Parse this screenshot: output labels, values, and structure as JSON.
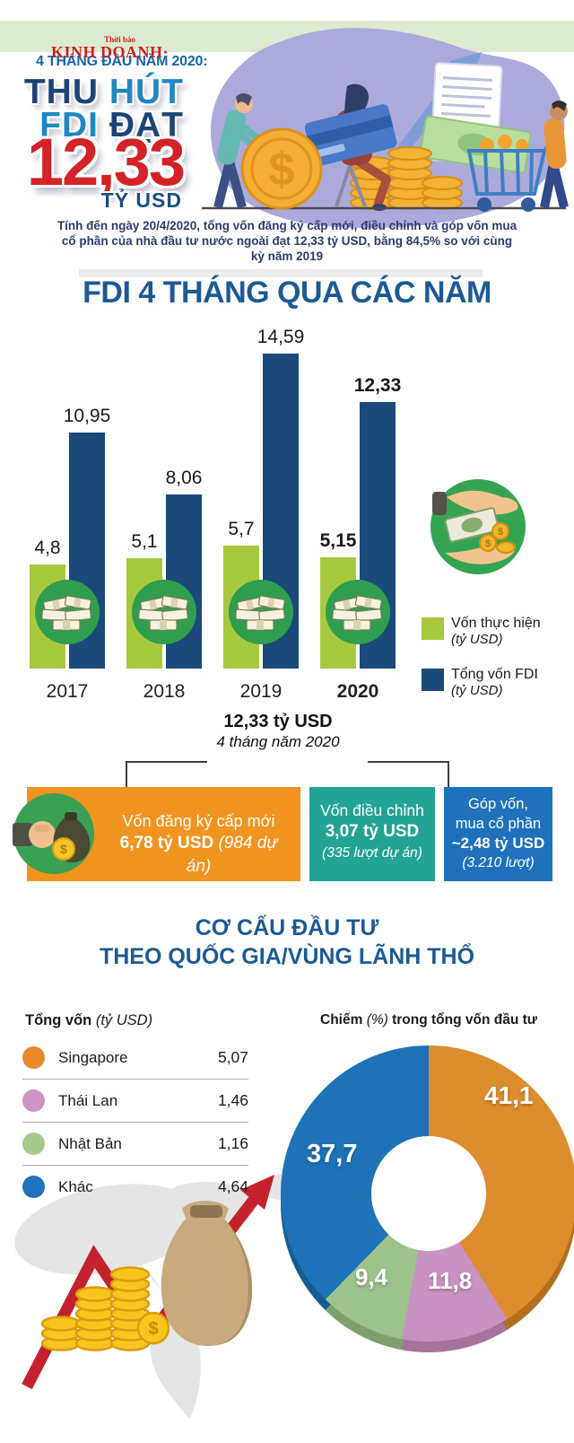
{
  "header": {
    "masthead_small": "Thời báo",
    "masthead_main": "KINH DOANH·",
    "kicker": "4 THÁNG ĐẦU NĂM 2020:",
    "title_word1": "THU",
    "title_word2": "HÚT",
    "title_word3": "FDI",
    "title_word4": "ĐẠT",
    "big_number": "12,33",
    "big_number_unit": "TỶ USD",
    "intro": "Tính đến ngày 20/4/2020, tổng vốn đăng ký cấp mới, điều chỉnh và góp vốn mua cổ phần của nhà đầu tư nước ngoài đạt 12,33 tỷ USD, bằng 84,5% so với cùng kỳ năm 2019"
  },
  "bar_section": {
    "title": "FDI 4 THÁNG QUA CÁC NĂM",
    "legend": [
      {
        "label": "Vốn thực hiện",
        "unit": "(tỷ USD)",
        "color": "#a6c93d"
      },
      {
        "label": "Tổng vốn FDI",
        "unit": "(tỷ USD)",
        "color": "#1b4a7a"
      }
    ]
  },
  "breakdown": {
    "total_label": "12,33 tỷ USD",
    "period_label": "4 tháng năm 2020",
    "boxes": [
      {
        "title": "Vốn đăng ký cấp mới",
        "value": "6,78 tỷ USD",
        "note": "(984 dự án)",
        "color": "#f0941f"
      },
      {
        "title": "Vốn điều chỉnh",
        "value": "3,07 tỷ USD",
        "note": "(335 lượt dự án)",
        "color": "#23a396"
      },
      {
        "title_line1": "Góp vốn,",
        "title_line2": "mua cổ phần",
        "value": "~2,48 tỷ USD",
        "note": "(3.210 lượt)",
        "color": "#1e71ba"
      }
    ]
  },
  "pie_section": {
    "title_line1": "CƠ CẤU ĐẦU TƯ",
    "title_line2": "THEO QUỐC GIA/VÙNG LÃNH THỔ",
    "left_header": {
      "bold": "Tổng vốn",
      "italic": "(tỷ USD)"
    },
    "right_header": {
      "bold1": "Chiếm",
      "italic": "(%)",
      "bold2": "trong tổng vốn đầu tư"
    },
    "rows": [
      {
        "name": "Singapore",
        "value": "5,07",
        "color": "#e8892b"
      },
      {
        "name": "Thái Lan",
        "value": "1,46",
        "color": "#cf93c4"
      },
      {
        "name": "Nhật Bản",
        "value": "1,16",
        "color": "#a5cb8f"
      },
      {
        "name": "Khác",
        "value": "4,64",
        "color": "#1e73ba"
      }
    ]
  },
  "chart_data": [
    {
      "type": "bar",
      "title": "FDI 4 THÁNG QUA CÁC NĂM",
      "categories": [
        "2017",
        "2018",
        "2019",
        "2020"
      ],
      "series": [
        {
          "name": "Vốn thực hiện (tỷ USD)",
          "color": "#a6c93d",
          "values": [
            4.8,
            5.1,
            5.7,
            5.15
          ],
          "labels": [
            "4,8",
            "5,1",
            "5,7",
            "5,15"
          ]
        },
        {
          "name": "Tổng vốn FDI (tỷ USD)",
          "color": "#1b4a7a",
          "values": [
            10.95,
            8.06,
            14.59,
            12.33
          ],
          "labels": [
            "10,95",
            "8,06",
            "14,59",
            "12,33"
          ]
        }
      ],
      "ylabel": "tỷ USD",
      "ylim": [
        0,
        16
      ],
      "grid": false,
      "legend_position": "right",
      "emphasis_index": 3
    },
    {
      "type": "pie",
      "donut": true,
      "title": "Chiếm (%) trong tổng vốn đầu tư",
      "labels": [
        "Singapore",
        "Thái Lan",
        "Nhật Bản",
        "Khác"
      ],
      "values_percent": [
        41.1,
        11.8,
        9.4,
        37.7
      ],
      "values_ty_usd": [
        5.07,
        1.46,
        1.16,
        4.64
      ],
      "display_percent": [
        "41,1",
        "11,8",
        "9,4",
        "37,7"
      ],
      "display_values": [
        "5,07",
        "1,46",
        "1,16",
        "4,64"
      ],
      "colors": [
        "#dd8c2e",
        "#c892c2",
        "#9cc38c",
        "#1e72b8"
      ],
      "colors_dark": [
        "#b26f1e",
        "#a4729c",
        "#7da06e",
        "#175b95"
      ],
      "start_angle_deg": 0,
      "direction": "clockwise"
    }
  ]
}
